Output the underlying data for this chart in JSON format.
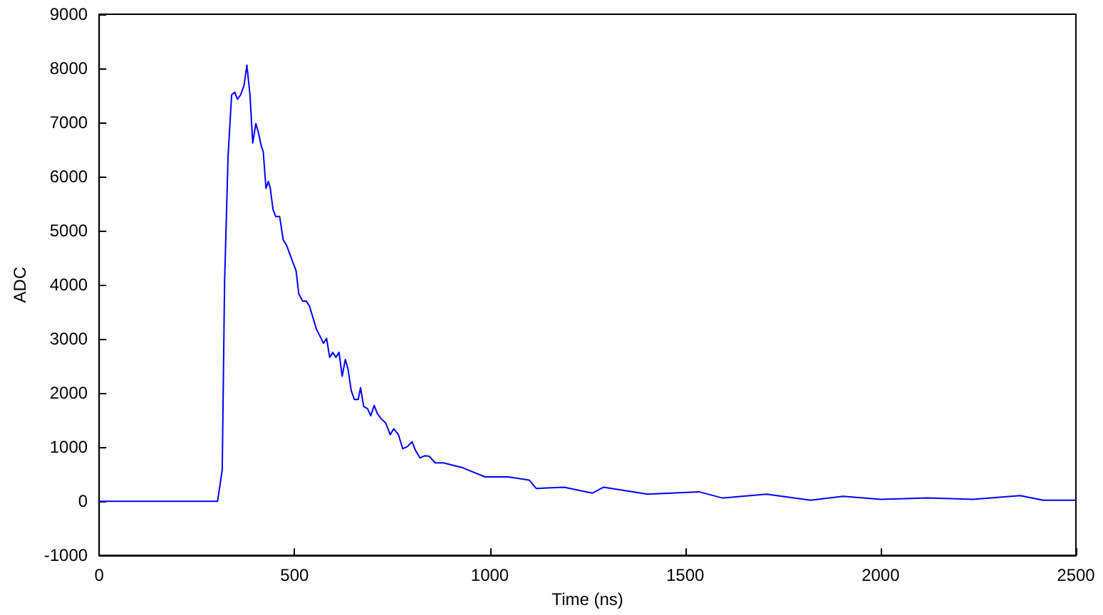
{
  "chart_data": {
    "type": "line",
    "xlabel": "Time (ns)",
    "ylabel": "ADC",
    "xlim": [
      0,
      2500
    ],
    "xticks": [
      0,
      500,
      1000,
      1500,
      2000,
      2500
    ],
    "ylim": [
      -1000,
      9000
    ],
    "yticks": [
      -1000,
      0,
      1000,
      2000,
      3000,
      4000,
      5000,
      6000,
      7000,
      8000,
      9000
    ],
    "marker": "none",
    "line_style": "solid",
    "x": [
      0,
      100,
      200,
      303,
      315,
      321,
      330,
      339,
      347,
      354,
      362,
      371,
      378,
      386,
      393,
      401,
      408,
      415,
      420,
      427,
      433,
      438,
      445,
      452,
      462,
      471,
      479,
      488,
      497,
      504,
      511,
      521,
      530,
      538,
      547,
      556,
      568,
      574,
      582,
      590,
      598,
      606,
      614,
      622,
      630,
      637,
      645,
      653,
      663,
      669,
      677,
      687,
      695,
      704,
      712,
      721,
      733,
      745,
      754,
      766,
      777,
      789,
      801,
      809,
      821,
      833,
      845,
      860,
      881,
      928,
      988,
      1047,
      1101,
      1119,
      1190,
      1262,
      1291,
      1404,
      1535,
      1595,
      1708,
      1821,
      1904,
      2000,
      2119,
      2237,
      2357,
      2416,
      2500
    ],
    "series": [
      {
        "color": "#0000ff",
        "values": [
          0,
          0,
          0,
          0,
          580,
          4050,
          6390,
          7510,
          7560,
          7430,
          7510,
          7690,
          8060,
          7510,
          6620,
          6980,
          6800,
          6560,
          6460,
          5780,
          5910,
          5780,
          5390,
          5260,
          5260,
          4830,
          4740,
          4570,
          4390,
          4260,
          3830,
          3700,
          3700,
          3610,
          3400,
          3180,
          3010,
          2920,
          3010,
          2660,
          2750,
          2660,
          2750,
          2310,
          2620,
          2440,
          2050,
          1880,
          1880,
          2100,
          1750,
          1710,
          1580,
          1770,
          1620,
          1530,
          1450,
          1230,
          1340,
          1230,
          970,
          1010,
          1100,
          950,
          800,
          840,
          830,
          710,
          710,
          625,
          450,
          450,
          390,
          235,
          260,
          150,
          260,
          130,
          175,
          60,
          130,
          20,
          90,
          35,
          60,
          35,
          105,
          20,
          20
        ]
      }
    ]
  }
}
